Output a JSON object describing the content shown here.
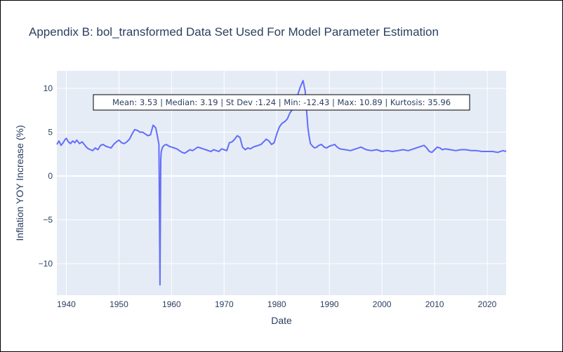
{
  "chart_data": {
    "type": "line",
    "title": "Appendix B: bol_transformed Data Set Used For Model Parameter Estimation",
    "xlabel": "Date",
    "ylabel": "Inflation YOY Increase (%)",
    "xlim": [
      1938.2,
      2023.6
    ],
    "ylim": [
      -13.6,
      12.0
    ],
    "x_ticks": [
      1940,
      1950,
      1960,
      1970,
      1980,
      1990,
      2000,
      2010,
      2020
    ],
    "x_tick_labels": [
      "1940",
      "1950",
      "1960",
      "1970",
      "1980",
      "1990",
      "2000",
      "2010",
      "2020"
    ],
    "y_ticks": [
      -10,
      -5,
      0,
      5,
      10
    ],
    "y_tick_labels": [
      "−10",
      "−5",
      "0",
      "5",
      "10"
    ],
    "grid": true,
    "annotation": "Mean: 3.53 | Median: 3.19 | St Dev :1.24 | Min: -12.43 | Max: 10.89 | Kurtosis: 35.96",
    "colors": {
      "line": "#636efa",
      "plot_bg": "#e5ecf6",
      "grid": "#ffffff",
      "text": "#2a3f5f"
    },
    "series": [
      {
        "x": [
          1938.2,
          1938.6,
          1939.0,
          1939.4,
          1939.8,
          1940.0,
          1940.4,
          1940.8,
          1941.2,
          1941.6,
          1942.0,
          1942.5,
          1943.0,
          1943.4,
          1943.8,
          1944.2,
          1944.6,
          1945.0,
          1945.5,
          1946.0,
          1946.5,
          1947.0,
          1947.5,
          1948.0,
          1948.5,
          1949.0,
          1949.5,
          1950.0,
          1950.5,
          1951.0,
          1951.5,
          1952.0,
          1952.5,
          1953.0,
          1953.5,
          1954.0,
          1954.5,
          1955.0,
          1955.5,
          1956.0,
          1956.5,
          1957.0,
          1957.3,
          1957.6,
          1957.8,
          1957.95,
          1958.02,
          1958.1,
          1958.3,
          1958.6,
          1959.0,
          1959.5,
          1960.0,
          1960.5,
          1961.0,
          1961.5,
          1962.0,
          1962.5,
          1963.0,
          1963.5,
          1964.0,
          1964.5,
          1965.0,
          1965.5,
          1966.0,
          1966.5,
          1967.0,
          1967.5,
          1968.0,
          1968.5,
          1969.0,
          1969.5,
          1970.0,
          1970.5,
          1971.0,
          1971.5,
          1972.0,
          1972.5,
          1973.0,
          1973.5,
          1974.0,
          1974.5,
          1975.0,
          1975.5,
          1976.0,
          1976.5,
          1977.0,
          1977.5,
          1978.0,
          1978.5,
          1979.0,
          1979.5,
          1980.0,
          1980.5,
          1981.0,
          1981.5,
          1982.0,
          1982.5,
          1983.0,
          1983.5,
          1984.0,
          1984.5,
          1985.0,
          1985.4,
          1985.7,
          1985.9,
          1986.1,
          1986.4,
          1986.8,
          1987.2,
          1987.6,
          1988.0,
          1988.5,
          1989.0,
          1989.5,
          1990.0,
          1990.5,
          1991.0,
          1991.5,
          1992.0,
          1993.0,
          1994.0,
          1995.0,
          1996.0,
          1997.0,
          1998.0,
          1999.0,
          2000.0,
          2001.0,
          2002.0,
          2003.0,
          2004.0,
          2005.0,
          2006.0,
          2007.0,
          2008.0,
          2008.5,
          2009.0,
          2009.5,
          2010.0,
          2010.5,
          2011.0,
          2011.5,
          2012.0,
          2013.0,
          2014.0,
          2015.0,
          2016.0,
          2017.0,
          2018.0,
          2019.0,
          2020.0,
          2021.0,
          2022.0,
          2023.0,
          2023.6
        ],
        "values": [
          3.6,
          4.0,
          3.5,
          3.8,
          4.2,
          4.3,
          3.9,
          3.7,
          4.0,
          3.8,
          4.1,
          3.7,
          3.9,
          3.6,
          3.3,
          3.1,
          3.0,
          2.9,
          3.2,
          3.0,
          3.5,
          3.6,
          3.4,
          3.3,
          3.2,
          3.6,
          3.9,
          4.1,
          3.8,
          3.7,
          3.9,
          4.2,
          4.8,
          5.3,
          5.2,
          5.0,
          5.0,
          4.8,
          4.6,
          4.7,
          5.8,
          5.5,
          4.6,
          3.6,
          -12.43,
          1.8,
          2.6,
          2.9,
          3.3,
          3.5,
          3.6,
          3.4,
          3.3,
          3.2,
          3.1,
          2.9,
          2.7,
          2.6,
          2.8,
          3.0,
          2.9,
          3.1,
          3.3,
          3.2,
          3.1,
          3.0,
          2.9,
          2.8,
          3.0,
          2.9,
          2.8,
          3.1,
          3.0,
          2.9,
          3.8,
          3.9,
          4.2,
          4.6,
          4.4,
          3.3,
          3.0,
          3.2,
          3.1,
          3.3,
          3.4,
          3.5,
          3.6,
          3.9,
          4.2,
          4.0,
          3.6,
          3.8,
          4.8,
          5.6,
          6.0,
          6.2,
          6.5,
          7.2,
          7.6,
          8.2,
          9.3,
          10.2,
          10.89,
          9.7,
          7.2,
          5.6,
          4.7,
          3.7,
          3.4,
          3.2,
          3.3,
          3.5,
          3.6,
          3.3,
          3.2,
          3.4,
          3.5,
          3.6,
          3.3,
          3.1,
          3.0,
          2.9,
          3.1,
          3.3,
          3.0,
          2.9,
          3.0,
          2.8,
          2.9,
          2.8,
          2.9,
          3.0,
          2.9,
          3.1,
          3.3,
          3.5,
          3.2,
          2.8,
          2.7,
          3.0,
          3.3,
          3.2,
          3.0,
          3.1,
          3.0,
          2.9,
          3.0,
          3.0,
          2.9,
          2.9,
          2.8,
          2.8,
          2.8,
          2.7,
          2.9,
          2.8
        ]
      }
    ]
  }
}
